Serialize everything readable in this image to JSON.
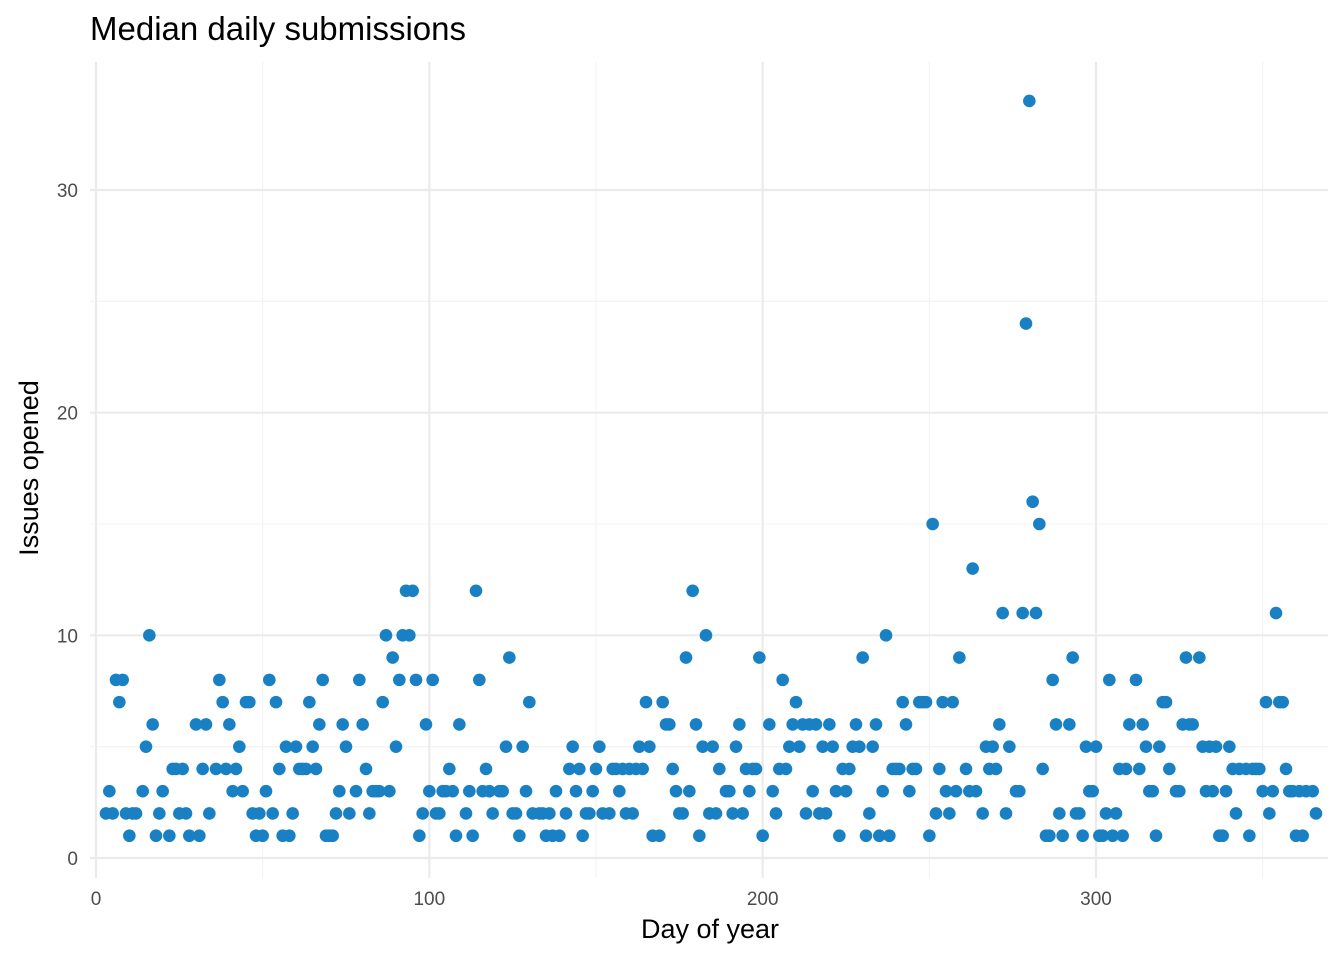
{
  "chart_data": {
    "type": "scatter",
    "title": "Median daily submissions",
    "xlabel": "Day of year",
    "ylabel": "Issues opened",
    "xlim": [
      0,
      366
    ],
    "ylim": [
      0,
      35
    ],
    "x_ticks": [
      "0",
      "100",
      "200",
      "300"
    ],
    "y_ticks": [
      "0",
      "10",
      "20",
      "30"
    ],
    "grid": true,
    "legend": "none",
    "color": "#1a80c4",
    "points": [
      [
        3,
        2
      ],
      [
        4,
        3
      ],
      [
        5,
        2
      ],
      [
        6,
        8
      ],
      [
        7,
        7
      ],
      [
        8,
        8
      ],
      [
        9,
        2
      ],
      [
        10,
        1
      ],
      [
        11,
        2
      ],
      [
        12,
        2
      ],
      [
        14,
        3
      ],
      [
        15,
        5
      ],
      [
        16,
        10
      ],
      [
        17,
        6
      ],
      [
        18,
        1
      ],
      [
        19,
        2
      ],
      [
        20,
        3
      ],
      [
        22,
        1
      ],
      [
        23,
        4
      ],
      [
        24,
        4
      ],
      [
        25,
        2
      ],
      [
        26,
        4
      ],
      [
        27,
        2
      ],
      [
        28,
        1
      ],
      [
        30,
        6
      ],
      [
        31,
        1
      ],
      [
        32,
        4
      ],
      [
        33,
        6
      ],
      [
        34,
        2
      ],
      [
        36,
        4
      ],
      [
        37,
        8
      ],
      [
        38,
        7
      ],
      [
        39,
        4
      ],
      [
        40,
        6
      ],
      [
        41,
        3
      ],
      [
        42,
        4
      ],
      [
        43,
        5
      ],
      [
        44,
        3
      ],
      [
        45,
        7
      ],
      [
        46,
        7
      ],
      [
        47,
        2
      ],
      [
        48,
        1
      ],
      [
        49,
        2
      ],
      [
        50,
        1
      ],
      [
        51,
        3
      ],
      [
        52,
        8
      ],
      [
        53,
        2
      ],
      [
        54,
        7
      ],
      [
        55,
        4
      ],
      [
        56,
        1
      ],
      [
        57,
        5
      ],
      [
        58,
        1
      ],
      [
        59,
        2
      ],
      [
        60,
        5
      ],
      [
        61,
        4
      ],
      [
        62,
        4
      ],
      [
        63,
        4
      ],
      [
        64,
        7
      ],
      [
        65,
        5
      ],
      [
        66,
        4
      ],
      [
        67,
        6
      ],
      [
        68,
        8
      ],
      [
        69,
        1
      ],
      [
        70,
        1
      ],
      [
        71,
        1
      ],
      [
        72,
        2
      ],
      [
        73,
        3
      ],
      [
        74,
        6
      ],
      [
        75,
        5
      ],
      [
        76,
        2
      ],
      [
        78,
        3
      ],
      [
        79,
        8
      ],
      [
        80,
        6
      ],
      [
        81,
        4
      ],
      [
        82,
        2
      ],
      [
        83,
        3
      ],
      [
        84,
        3
      ],
      [
        85,
        3
      ],
      [
        86,
        7
      ],
      [
        87,
        10
      ],
      [
        88,
        3
      ],
      [
        89,
        9
      ],
      [
        90,
        5
      ],
      [
        91,
        8
      ],
      [
        92,
        10
      ],
      [
        93,
        12
      ],
      [
        94,
        10
      ],
      [
        95,
        12
      ],
      [
        96,
        8
      ],
      [
        97,
        1
      ],
      [
        98,
        2
      ],
      [
        99,
        6
      ],
      [
        100,
        3
      ],
      [
        101,
        8
      ],
      [
        102,
        2
      ],
      [
        103,
        2
      ],
      [
        104,
        3
      ],
      [
        105,
        3
      ],
      [
        106,
        4
      ],
      [
        107,
        3
      ],
      [
        108,
        1
      ],
      [
        109,
        6
      ],
      [
        111,
        2
      ],
      [
        112,
        3
      ],
      [
        113,
        1
      ],
      [
        114,
        12
      ],
      [
        115,
        8
      ],
      [
        116,
        3
      ],
      [
        117,
        4
      ],
      [
        118,
        3
      ],
      [
        119,
        2
      ],
      [
        121,
        3
      ],
      [
        122,
        3
      ],
      [
        123,
        5
      ],
      [
        124,
        9
      ],
      [
        125,
        2
      ],
      [
        126,
        2
      ],
      [
        127,
        1
      ],
      [
        128,
        5
      ],
      [
        129,
        3
      ],
      [
        130,
        7
      ],
      [
        131,
        2
      ],
      [
        133,
        2
      ],
      [
        134,
        2
      ],
      [
        135,
        1
      ],
      [
        136,
        2
      ],
      [
        137,
        1
      ],
      [
        138,
        3
      ],
      [
        139,
        1
      ],
      [
        141,
        2
      ],
      [
        142,
        4
      ],
      [
        143,
        5
      ],
      [
        144,
        3
      ],
      [
        145,
        4
      ],
      [
        146,
        1
      ],
      [
        147,
        2
      ],
      [
        148,
        2
      ],
      [
        149,
        3
      ],
      [
        150,
        4
      ],
      [
        151,
        5
      ],
      [
        152,
        2
      ],
      [
        154,
        2
      ],
      [
        155,
        4
      ],
      [
        156,
        4
      ],
      [
        157,
        3
      ],
      [
        158,
        4
      ],
      [
        159,
        2
      ],
      [
        160,
        4
      ],
      [
        161,
        2
      ],
      [
        162,
        4
      ],
      [
        163,
        5
      ],
      [
        164,
        4
      ],
      [
        165,
        7
      ],
      [
        166,
        5
      ],
      [
        167,
        1
      ],
      [
        169,
        1
      ],
      [
        170,
        7
      ],
      [
        171,
        6
      ],
      [
        172,
        6
      ],
      [
        173,
        4
      ],
      [
        174,
        3
      ],
      [
        175,
        2
      ],
      [
        176,
        2
      ],
      [
        177,
        9
      ],
      [
        178,
        3
      ],
      [
        179,
        12
      ],
      [
        180,
        6
      ],
      [
        181,
        1
      ],
      [
        182,
        5
      ],
      [
        183,
        10
      ],
      [
        184,
        2
      ],
      [
        185,
        5
      ],
      [
        186,
        2
      ],
      [
        187,
        4
      ],
      [
        189,
        3
      ],
      [
        190,
        3
      ],
      [
        191,
        2
      ],
      [
        192,
        5
      ],
      [
        193,
        6
      ],
      [
        194,
        2
      ],
      [
        195,
        4
      ],
      [
        196,
        3
      ],
      [
        197,
        4
      ],
      [
        198,
        4
      ],
      [
        199,
        9
      ],
      [
        200,
        1
      ],
      [
        202,
        6
      ],
      [
        203,
        3
      ],
      [
        204,
        2
      ],
      [
        205,
        4
      ],
      [
        206,
        8
      ],
      [
        207,
        4
      ],
      [
        208,
        5
      ],
      [
        209,
        6
      ],
      [
        210,
        7
      ],
      [
        211,
        5
      ],
      [
        212,
        6
      ],
      [
        213,
        2
      ],
      [
        214,
        6
      ],
      [
        215,
        3
      ],
      [
        216,
        6
      ],
      [
        217,
        2
      ],
      [
        218,
        5
      ],
      [
        219,
        2
      ],
      [
        220,
        6
      ],
      [
        221,
        5
      ],
      [
        222,
        3
      ],
      [
        223,
        1
      ],
      [
        224,
        4
      ],
      [
        225,
        3
      ],
      [
        226,
        4
      ],
      [
        227,
        5
      ],
      [
        228,
        6
      ],
      [
        229,
        5
      ],
      [
        230,
        9
      ],
      [
        231,
        1
      ],
      [
        232,
        2
      ],
      [
        233,
        5
      ],
      [
        234,
        6
      ],
      [
        235,
        1
      ],
      [
        236,
        3
      ],
      [
        237,
        10
      ],
      [
        238,
        1
      ],
      [
        239,
        4
      ],
      [
        240,
        4
      ],
      [
        241,
        4
      ],
      [
        242,
        7
      ],
      [
        243,
        6
      ],
      [
        244,
        3
      ],
      [
        245,
        4
      ],
      [
        246,
        4
      ],
      [
        247,
        7
      ],
      [
        248,
        7
      ],
      [
        249,
        7
      ],
      [
        250,
        1
      ],
      [
        251,
        15
      ],
      [
        252,
        2
      ],
      [
        253,
        4
      ],
      [
        254,
        7
      ],
      [
        255,
        3
      ],
      [
        256,
        2
      ],
      [
        257,
        7
      ],
      [
        258,
        3
      ],
      [
        259,
        9
      ],
      [
        261,
        4
      ],
      [
        262,
        3
      ],
      [
        263,
        13
      ],
      [
        264,
        3
      ],
      [
        266,
        2
      ],
      [
        267,
        5
      ],
      [
        268,
        4
      ],
      [
        269,
        5
      ],
      [
        270,
        4
      ],
      [
        271,
        6
      ],
      [
        272,
        11
      ],
      [
        273,
        2
      ],
      [
        274,
        5
      ],
      [
        276,
        3
      ],
      [
        277,
        3
      ],
      [
        278,
        11
      ],
      [
        279,
        24
      ],
      [
        280,
        34
      ],
      [
        281,
        16
      ],
      [
        282,
        11
      ],
      [
        283,
        15
      ],
      [
        284,
        4
      ],
      [
        285,
        1
      ],
      [
        286,
        1
      ],
      [
        287,
        8
      ],
      [
        288,
        6
      ],
      [
        289,
        2
      ],
      [
        290,
        1
      ],
      [
        292,
        6
      ],
      [
        293,
        9
      ],
      [
        294,
        2
      ],
      [
        295,
        2
      ],
      [
        296,
        1
      ],
      [
        297,
        5
      ],
      [
        298,
        3
      ],
      [
        299,
        3
      ],
      [
        300,
        5
      ],
      [
        301,
        1
      ],
      [
        302,
        1
      ],
      [
        303,
        2
      ],
      [
        304,
        8
      ],
      [
        305,
        1
      ],
      [
        306,
        2
      ],
      [
        307,
        4
      ],
      [
        308,
        1
      ],
      [
        309,
        4
      ],
      [
        310,
        6
      ],
      [
        312,
        8
      ],
      [
        313,
        4
      ],
      [
        314,
        6
      ],
      [
        315,
        5
      ],
      [
        316,
        3
      ],
      [
        317,
        3
      ],
      [
        318,
        1
      ],
      [
        319,
        5
      ],
      [
        320,
        7
      ],
      [
        321,
        7
      ],
      [
        322,
        4
      ],
      [
        324,
        3
      ],
      [
        325,
        3
      ],
      [
        326,
        6
      ],
      [
        327,
        9
      ],
      [
        328,
        6
      ],
      [
        329,
        6
      ],
      [
        331,
        9
      ],
      [
        332,
        5
      ],
      [
        333,
        3
      ],
      [
        334,
        5
      ],
      [
        335,
        3
      ],
      [
        336,
        5
      ],
      [
        337,
        1
      ],
      [
        338,
        1
      ],
      [
        339,
        3
      ],
      [
        340,
        5
      ],
      [
        341,
        4
      ],
      [
        342,
        2
      ],
      [
        343,
        4
      ],
      [
        345,
        4
      ],
      [
        346,
        1
      ],
      [
        347,
        4
      ],
      [
        348,
        4
      ],
      [
        349,
        4
      ],
      [
        350,
        3
      ],
      [
        351,
        7
      ],
      [
        352,
        2
      ],
      [
        353,
        3
      ],
      [
        354,
        11
      ],
      [
        355,
        7
      ],
      [
        356,
        7
      ],
      [
        357,
        4
      ],
      [
        358,
        3
      ],
      [
        359,
        3
      ],
      [
        360,
        1
      ],
      [
        361,
        3
      ],
      [
        362,
        1
      ],
      [
        363,
        3
      ],
      [
        365,
        3
      ],
      [
        366,
        2
      ]
    ]
  }
}
